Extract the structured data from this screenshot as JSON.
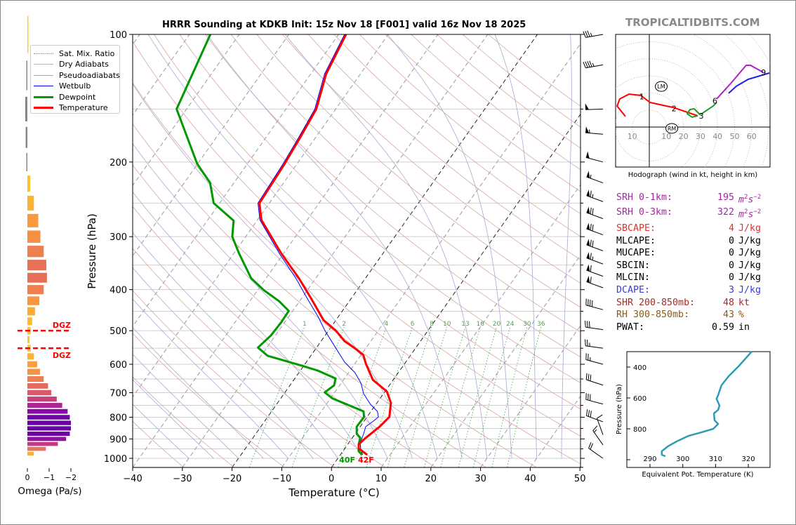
{
  "title": "HRRR Sounding at KDKB Init: 15z Nov 18 [F001] valid 16z Nov 18 2025",
  "watermark": "TROPICALTIDBITS.COM",
  "legend": [
    {
      "label": "Sat. Mix. Ratio",
      "color": "#4caf50",
      "style": "dotted"
    },
    {
      "label": "Dry Adiabats",
      "color": "#dba3a3",
      "style": "solid"
    },
    {
      "label": "Pseudoadiabats",
      "color": "#a8a8d8",
      "style": "solid"
    },
    {
      "label": "Wetbulb",
      "color": "#0000ff",
      "style": "solid"
    },
    {
      "label": "Dewpoint",
      "color": "#009900",
      "style": "thick"
    },
    {
      "label": "Temperature",
      "color": "#ff0000",
      "style": "thick"
    }
  ],
  "stats": [
    {
      "label": "SRH 0-1km:",
      "value": "195",
      "unit": "m2s-2",
      "color": "#a626a4"
    },
    {
      "label": "SRH 0-3km:",
      "value": "322",
      "unit": "m2s-2",
      "color": "#a626a4"
    },
    {
      "label": "SBCAPE:",
      "value": "4",
      "unit": "J/kg",
      "color": "#e03030"
    },
    {
      "label": "MLCAPE:",
      "value": "0",
      "unit": "J/kg",
      "color": "#000000"
    },
    {
      "label": "MUCAPE:",
      "value": "0",
      "unit": "J/kg",
      "color": "#000000"
    },
    {
      "label": "SBCIN:",
      "value": "0",
      "unit": "J/kg",
      "color": "#000000"
    },
    {
      "label": "MLCIN:",
      "value": "0",
      "unit": "J/kg",
      "color": "#000000"
    },
    {
      "label": "DCAPE:",
      "value": "3",
      "unit": "J/kg",
      "color": "#3a3adf"
    },
    {
      "label": "SHR 200-850mb:",
      "value": "48",
      "unit": "kt",
      "color": "#a52a2a"
    },
    {
      "label": "RH 300-850mb:",
      "value": "43",
      "unit": "%",
      "color": "#8b5a1a"
    },
    {
      "label": "PWAT:",
      "value": "0.59",
      "unit": "in",
      "color": "#000000"
    }
  ],
  "chart_data": [
    {
      "id": "skewt",
      "type": "line",
      "title": "HRRR Sounding at KDKB Init: 15z Nov 18 [F001] valid 16z Nov 18 2025",
      "xlabel": "Temperature (°C)",
      "ylabel": "Pressure (hPa)",
      "xlim": [
        -40,
        50
      ],
      "ylim": [
        1050,
        100
      ],
      "x_ticks": [
        "−40",
        "−30",
        "−20",
        "−10",
        "0",
        "10",
        "20",
        "30",
        "40",
        "50"
      ],
      "x_tick_values": [
        -40,
        -30,
        -20,
        -10,
        0,
        10,
        20,
        30,
        40,
        50
      ],
      "y_ticks": [
        "100",
        "200",
        "300",
        "400",
        "500",
        "600",
        "700",
        "800",
        "900",
        "1000"
      ],
      "y_tick_values": [
        100,
        200,
        300,
        400,
        500,
        600,
        700,
        800,
        900,
        1000
      ],
      "highlighted_isotherms": [
        -20,
        0
      ],
      "mixing_ratio_labels": [
        "1",
        "2",
        "4",
        "6",
        "8",
        "10",
        "13",
        "16",
        "20",
        "24",
        "30",
        "36"
      ],
      "mixing_ratio_values": [
        1,
        2,
        4,
        6,
        8,
        10,
        13,
        16,
        20,
        24,
        30,
        36
      ],
      "surface_temp_label": "42F",
      "surface_dewpoint_label": "40F",
      "series": [
        {
          "name": "Temperature",
          "color": "#ff0000",
          "p": [
            100,
            124,
            150,
            175,
            202,
            250,
            274,
            329,
            376,
            421,
            472,
            500,
            529,
            550,
            571,
            598,
            653,
            696,
            740,
            799,
            842,
            895,
            927,
            948,
            981
          ],
          "T": [
            -58.5,
            -56.9,
            -53.9,
            -53.1,
            -52.5,
            -52,
            -49.2,
            -40.4,
            -33.4,
            -27.9,
            -22.5,
            -18.5,
            -15.3,
            -12.2,
            -9.5,
            -7.8,
            -4.1,
            0.4,
            2.8,
            4.5,
            3.9,
            2.7,
            2.2,
            2.8,
            5.4
          ]
        },
        {
          "name": "Dewpoint",
          "color": "#009900",
          "p": [
            100,
            150,
            202,
            224,
            250,
            275,
            300,
            329,
            376,
            401,
            426,
            449,
            477,
            513,
            548,
            573,
            605,
            621,
            648,
            673,
            699,
            723,
            775,
            799,
            842,
            875,
            895,
            927,
            963,
            981
          ],
          "T": [
            -85.8,
            -82,
            -70.1,
            -64.8,
            -61.2,
            -54.7,
            -52.7,
            -48.9,
            -43,
            -38.8,
            -34.1,
            -30.8,
            -30.7,
            -30.9,
            -31.8,
            -28.7,
            -20.3,
            -16.5,
            -11.8,
            -11.1,
            -12,
            -9.5,
            -1.5,
            -0.6,
            -0.7,
            0.3,
            1.6,
            2.2,
            3.2,
            4.4
          ]
        },
        {
          "name": "Wetbulb",
          "color": "#0000ff",
          "p": [
            100,
            124,
            150,
            175,
            202,
            250,
            274,
            329,
            376,
            421,
            463,
            500,
            550,
            593,
            628,
            665,
            704,
            746,
            775,
            799,
            820,
            842,
            875,
            920,
            955,
            981
          ],
          "T": [
            -58.8,
            -57.2,
            -54.2,
            -53.4,
            -52.8,
            -52.3,
            -49.5,
            -40.8,
            -34,
            -28.7,
            -24.1,
            -20.7,
            -16,
            -12.3,
            -8.7,
            -6,
            -4,
            -1.1,
            1.3,
            2.3,
            1.8,
            1.1,
            1.7,
            2.3,
            3.4,
            4.5
          ]
        }
      ],
      "wind_barbs": [
        {
          "p": 100,
          "dir": 280,
          "spd": 35
        },
        {
          "p": 118,
          "dir": 280,
          "spd": 45
        },
        {
          "p": 150,
          "dir": 272,
          "spd": 50
        },
        {
          "p": 172,
          "dir": 265,
          "spd": 55
        },
        {
          "p": 200,
          "dir": 255,
          "spd": 50
        },
        {
          "p": 224,
          "dir": 250,
          "spd": 55
        },
        {
          "p": 248,
          "dir": 250,
          "spd": 65
        },
        {
          "p": 272,
          "dir": 250,
          "spd": 70
        },
        {
          "p": 297,
          "dir": 250,
          "spd": 70
        },
        {
          "p": 324,
          "dir": 250,
          "spd": 70
        },
        {
          "p": 348,
          "dir": 250,
          "spd": 65
        },
        {
          "p": 372,
          "dir": 250,
          "spd": 60
        },
        {
          "p": 396,
          "dir": 250,
          "spd": 60
        },
        {
          "p": 446,
          "dir": 255,
          "spd": 40
        },
        {
          "p": 497,
          "dir": 262,
          "spd": 30
        },
        {
          "p": 550,
          "dir": 262,
          "spd": 25
        },
        {
          "p": 600,
          "dir": 255,
          "spd": 25
        },
        {
          "p": 672,
          "dir": 252,
          "spd": 30
        },
        {
          "p": 745,
          "dir": 255,
          "spd": 30
        },
        {
          "p": 820,
          "dir": 250,
          "spd": 30
        },
        {
          "p": 880,
          "dir": 200,
          "spd": 10
        },
        {
          "p": 930,
          "dir": 215,
          "spd": 15
        },
        {
          "p": 1000,
          "dir": 235,
          "spd": 20
        }
      ]
    },
    {
      "id": "hodograph",
      "type": "line",
      "title": "Hodograph (wind in kt, height in km)",
      "ring_labels": [
        "10",
        "10",
        "20",
        "30",
        "40",
        "50",
        "60"
      ],
      "ring_label_values": [
        -10,
        10,
        20,
        30,
        40,
        50,
        60
      ],
      "series": [
        {
          "name": "0-3 km",
          "color": "#ff0000",
          "u": [
            -14,
            -18.9,
            -17.3,
            -11.9,
            -4.9,
            0.4,
            14,
            28.4
          ],
          "v": [
            6.2,
            12.3,
            16.5,
            19.3,
            18.5,
            14.4,
            11.5,
            6.6
          ]
        },
        {
          "name": "3-6 km",
          "color": "#1f9a1f",
          "u": [
            28.4,
            25.1,
            22.2,
            23.9,
            26.3,
            29.6,
            31.3,
            37.4,
            39.5
          ],
          "v": [
            6.6,
            5.8,
            7.8,
            10.3,
            10.7,
            7.4,
            8.2,
            12.3,
            14.4
          ]
        },
        {
          "name": "6-9 km",
          "color": "#b020c0",
          "u": [
            39.5,
            47.7,
            56.8,
            59.3,
            66.7
          ],
          "v": [
            16.5,
            25.5,
            36.2,
            36.2,
            32.1
          ]
        },
        {
          "name": "9+ km",
          "color": "#2020ee",
          "u": [
            46.5,
            51,
            58,
            70.4
          ],
          "v": [
            19.8,
            23.9,
            28,
            31.7
          ]
        }
      ],
      "height_labels": [
        {
          "text": "1",
          "u": -4.5,
          "v": 18
        },
        {
          "text": "2",
          "u": 14.5,
          "v": 11
        },
        {
          "text": "3",
          "u": 30.5,
          "v": 6.5
        },
        {
          "text": "6",
          "u": 38.5,
          "v": 15.5
        },
        {
          "text": "9",
          "u": 67,
          "v": 32
        }
      ],
      "storm_motion": [
        {
          "text": "LM",
          "u": 7,
          "v": 23.8
        },
        {
          "text": "RM",
          "u": 13.2,
          "v": -0.8
        }
      ]
    },
    {
      "id": "theta-e",
      "type": "line",
      "xlabel": "Equivalent Pot. Temperature (K)",
      "ylabel": "Pressure (hPa)",
      "x_ticks": [
        "290",
        "300",
        "310",
        "320"
      ],
      "x_tick_values": [
        290,
        300,
        310,
        320
      ],
      "y_ticks": [
        "400",
        "600",
        "800"
      ],
      "y_tick_values": [
        400,
        600,
        800
      ],
      "color": "#2e9bb5",
      "p": [
        300,
        391,
        459,
        518,
        582,
        605,
        650,
        677,
        700,
        745,
        768,
        800,
        823,
        845,
        882,
        914,
        945,
        968,
        977
      ],
      "theta_e": [
        321,
        317.2,
        314,
        311.8,
        310.8,
        310.3,
        311.2,
        310.8,
        309.5,
        309.7,
        310.8,
        309.3,
        305.6,
        301.8,
        298.1,
        295.4,
        293.6,
        293.6,
        294.7
      ]
    },
    {
      "id": "omega",
      "type": "bar",
      "xlabel": "Omega (Pa/s)",
      "x_ticks": [
        "0",
        "−1",
        "−2"
      ],
      "x_tick_values": [
        0,
        -1,
        -2
      ],
      "dgz_label": "DGZ",
      "dgz_bounds_hPa": [
        500,
        550
      ],
      "p": [
        100,
        125,
        150,
        175,
        200,
        225,
        250,
        275,
        300,
        325,
        350,
        375,
        400,
        425,
        450,
        475,
        500,
        525,
        550,
        575,
        600,
        625,
        650,
        675,
        700,
        725,
        750,
        775,
        800,
        825,
        850,
        875,
        900,
        925,
        950,
        975
      ],
      "omega": [
        -0.02,
        0.03,
        0.1,
        0.08,
        0.01,
        -0.13,
        -0.3,
        -0.5,
        -0.6,
        -0.75,
        -0.87,
        -0.9,
        -0.75,
        -0.55,
        -0.35,
        -0.22,
        -0.15,
        -0.1,
        -0.15,
        -0.3,
        -0.45,
        -0.58,
        -0.75,
        -0.95,
        -1.1,
        -1.35,
        -1.6,
        -1.85,
        -1.95,
        -2.0,
        -2.0,
        -1.95,
        -1.78,
        -1.4,
        -0.85,
        -0.3
      ]
    }
  ]
}
